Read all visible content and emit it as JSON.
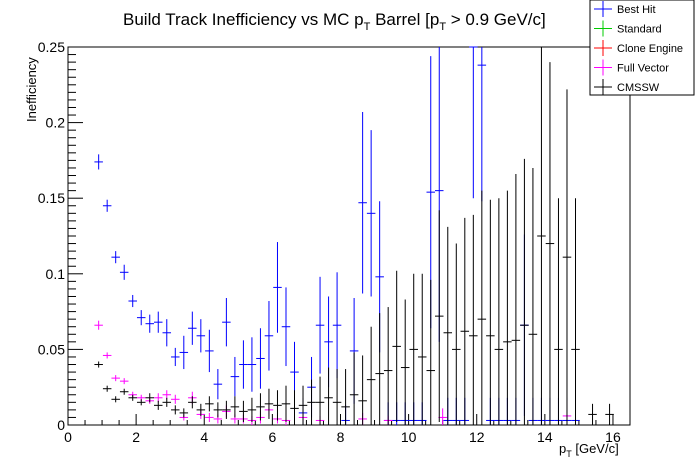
{
  "chart_data": {
    "type": "scatter",
    "title": {
      "main": "Build Track Inefficiency vs MC p",
      "sub": "T",
      "mid": " Barrel [p",
      "sub2": "T",
      "end": " > 0.9 GeV/c]"
    },
    "xlabel": {
      "main": "p",
      "sub": "T",
      "end": " [GeV/c]"
    },
    "ylabel": "Inefficiency",
    "xlim": [
      0,
      16.5
    ],
    "ylim": [
      0,
      0.25
    ],
    "x_ticks": [
      0,
      2,
      4,
      6,
      8,
      10,
      12,
      14,
      16
    ],
    "y_ticks": [
      0,
      0.05,
      0.1,
      0.15,
      0.2,
      0.25
    ],
    "x_tick_labels": [
      "0",
      "2",
      "4",
      "6",
      "8",
      "10",
      "12",
      "14",
      "16"
    ],
    "y_tick_labels": [
      "0",
      "0.05",
      "0.1",
      "0.15",
      "0.2",
      "0.25"
    ],
    "legend_position": "top-right",
    "bin_half_width": 0.125,
    "legend": [
      {
        "name": "Best Hit",
        "color": "#0000ff"
      },
      {
        "name": "Standard",
        "color": "#00cc00"
      },
      {
        "name": "Clone Engine",
        "color": "#ff0000"
      },
      {
        "name": "Full Vector",
        "color": "#ff00ff"
      },
      {
        "name": "CMSSW",
        "color": "#000000"
      }
    ],
    "series": [
      {
        "name": "Best Hit",
        "color": "#0000ff",
        "points": [
          {
            "x": 0.9,
            "y": 0.174,
            "e": 0.005
          },
          {
            "x": 1.15,
            "y": 0.145,
            "e": 0.004
          },
          {
            "x": 1.4,
            "y": 0.111,
            "e": 0.004
          },
          {
            "x": 1.65,
            "y": 0.101,
            "e": 0.005
          },
          {
            "x": 1.9,
            "y": 0.082,
            "e": 0.004
          },
          {
            "x": 2.15,
            "y": 0.071,
            "e": 0.005
          },
          {
            "x": 2.4,
            "y": 0.067,
            "e": 0.006
          },
          {
            "x": 2.65,
            "y": 0.068,
            "e": 0.007
          },
          {
            "x": 2.9,
            "y": 0.061,
            "e": 0.009
          },
          {
            "x": 3.15,
            "y": 0.045,
            "e": 0.006
          },
          {
            "x": 3.4,
            "y": 0.048,
            "e": 0.011
          },
          {
            "x": 3.65,
            "y": 0.064,
            "e": 0.011
          },
          {
            "x": 3.9,
            "y": 0.059,
            "e": 0.011
          },
          {
            "x": 4.15,
            "y": 0.049,
            "e": 0.014
          },
          {
            "x": 4.4,
            "y": 0.027,
            "e": 0.01
          },
          {
            "x": 4.65,
            "y": 0.068,
            "e": 0.016
          },
          {
            "x": 4.9,
            "y": 0.032,
            "e": 0.013
          },
          {
            "x": 5.15,
            "y": 0.04,
            "e": 0.016
          },
          {
            "x": 5.4,
            "y": 0.04,
            "e": 0.018
          },
          {
            "x": 5.65,
            "y": 0.044,
            "e": 0.02
          },
          {
            "x": 5.9,
            "y": 0.059,
            "e": 0.023
          },
          {
            "x": 6.15,
            "y": 0.091,
            "e": 0.03
          },
          {
            "x": 6.4,
            "y": 0.065,
            "e": 0.026
          },
          {
            "x": 6.65,
            "y": 0.035,
            "e": 0.02
          },
          {
            "x": 6.9,
            "y": 0.008,
            "e": 0.01
          },
          {
            "x": 7.15,
            "y": 0.025,
            "e": 0.02
          },
          {
            "x": 7.4,
            "y": 0.066,
            "e": 0.032
          },
          {
            "x": 7.65,
            "y": 0.055,
            "e": 0.03
          },
          {
            "x": 7.9,
            "y": 0.066,
            "e": 0.035
          },
          {
            "x": 8.15,
            "y": 0.003,
            "e": 0.01
          },
          {
            "x": 8.4,
            "y": 0.049,
            "e": 0.035
          },
          {
            "x": 8.65,
            "y": 0.147,
            "e": 0.06
          },
          {
            "x": 8.9,
            "y": 0.14,
            "e": 0.055
          },
          {
            "x": 9.15,
            "y": 0.098,
            "e": 0.05
          },
          {
            "x": 9.4,
            "y": 0.003,
            "e": 0.012
          },
          {
            "x": 9.65,
            "y": 0.003,
            "e": 0.012
          },
          {
            "x": 9.9,
            "y": 0.003,
            "e": 0.012
          },
          {
            "x": 10.15,
            "y": 0.003,
            "e": 0.012
          },
          {
            "x": 10.4,
            "y": 0.003,
            "e": 0.012
          },
          {
            "x": 10.65,
            "y": 0.154,
            "e": 0.09
          },
          {
            "x": 10.9,
            "y": 0.155,
            "e": 0.1
          },
          {
            "x": 11.15,
            "y": 0.003,
            "e": 0.015
          },
          {
            "x": 11.4,
            "y": 0.003,
            "e": 0.015
          },
          {
            "x": 11.65,
            "y": 0.003,
            "e": 0.015
          },
          {
            "x": 11.9,
            "y": 0.25,
            "e": 0.1
          },
          {
            "x": 12.15,
            "y": 0.238,
            "e": 0.09
          },
          {
            "x": 12.4,
            "y": 0.003,
            "e": 0.015
          },
          {
            "x": 12.65,
            "y": 0.003,
            "e": 0.015
          },
          {
            "x": 12.9,
            "y": 0.003,
            "e": 0.015
          },
          {
            "x": 13.15,
            "y": 0.003,
            "e": 0.015
          },
          {
            "x": 13.4,
            "y": 0.066,
            "e": 0.06
          },
          {
            "x": 13.65,
            "y": 0.003,
            "e": 0.015
          },
          {
            "x": 13.9,
            "y": 0.003,
            "e": 0.015
          },
          {
            "x": 14.15,
            "y": 0.003,
            "e": 0.015
          },
          {
            "x": 14.4,
            "y": 0.003,
            "e": 0.015
          },
          {
            "x": 14.65,
            "y": 0.003,
            "e": 0.015
          },
          {
            "x": 14.9,
            "y": 0.003,
            "e": 0.015
          }
        ]
      },
      {
        "name": "Full Vector",
        "color": "#ff00ff",
        "points": [
          {
            "x": 0.9,
            "y": 0.066,
            "e": 0.003
          },
          {
            "x": 1.15,
            "y": 0.046,
            "e": 0.002
          },
          {
            "x": 1.4,
            "y": 0.031,
            "e": 0.002
          },
          {
            "x": 1.65,
            "y": 0.029,
            "e": 0.002
          },
          {
            "x": 1.9,
            "y": 0.02,
            "e": 0.002
          },
          {
            "x": 2.15,
            "y": 0.018,
            "e": 0.002
          },
          {
            "x": 2.4,
            "y": 0.016,
            "e": 0.002
          },
          {
            "x": 2.65,
            "y": 0.018,
            "e": 0.003
          },
          {
            "x": 2.9,
            "y": 0.02,
            "e": 0.003
          },
          {
            "x": 3.15,
            "y": 0.017,
            "e": 0.003
          },
          {
            "x": 3.4,
            "y": 0.005,
            "e": 0.002
          },
          {
            "x": 3.65,
            "y": 0.018,
            "e": 0.004
          },
          {
            "x": 3.9,
            "y": 0.007,
            "e": 0.003
          },
          {
            "x": 4.15,
            "y": 0.005,
            "e": 0.003
          },
          {
            "x": 4.4,
            "y": 0.004,
            "e": 0.003
          },
          {
            "x": 4.65,
            "y": 0.009,
            "e": 0.004
          },
          {
            "x": 4.9,
            "y": 0.004,
            "e": 0.003
          },
          {
            "x": 5.15,
            "y": 0.004,
            "e": 0.003
          },
          {
            "x": 5.4,
            "y": 0.003,
            "e": 0.003
          },
          {
            "x": 5.65,
            "y": 0.005,
            "e": 0.004
          },
          {
            "x": 5.9,
            "y": 0.01,
            "e": 0.004
          },
          {
            "x": 6.15,
            "y": 0.004,
            "e": 0.003
          },
          {
            "x": 6.4,
            "y": 0.003,
            "e": 0.003
          },
          {
            "x": 6.9,
            "y": 0.005,
            "e": 0.003
          },
          {
            "x": 7.4,
            "y": 0.003,
            "e": 0.003
          },
          {
            "x": 8.65,
            "y": 0.004,
            "e": 0.004
          },
          {
            "x": 9.4,
            "y": 0.003,
            "e": 0.003
          },
          {
            "x": 11.0,
            "y": 0.005,
            "e": 0.006
          },
          {
            "x": 14.65,
            "y": 0.006,
            "e": 0.01
          }
        ]
      },
      {
        "name": "CMSSW",
        "color": "#000000",
        "points": [
          {
            "x": 0.9,
            "y": 0.04,
            "e": 0.002
          },
          {
            "x": 1.15,
            "y": 0.024,
            "e": 0.002
          },
          {
            "x": 1.4,
            "y": 0.017,
            "e": 0.002
          },
          {
            "x": 1.65,
            "y": 0.022,
            "e": 0.002
          },
          {
            "x": 1.9,
            "y": 0.018,
            "e": 0.002
          },
          {
            "x": 2.15,
            "y": 0.015,
            "e": 0.002
          },
          {
            "x": 2.4,
            "y": 0.018,
            "e": 0.003
          },
          {
            "x": 2.65,
            "y": 0.013,
            "e": 0.003
          },
          {
            "x": 2.9,
            "y": 0.015,
            "e": 0.003
          },
          {
            "x": 3.15,
            "y": 0.01,
            "e": 0.003
          },
          {
            "x": 3.4,
            "y": 0.008,
            "e": 0.003
          },
          {
            "x": 3.65,
            "y": 0.015,
            "e": 0.004
          },
          {
            "x": 3.9,
            "y": 0.01,
            "e": 0.004
          },
          {
            "x": 4.15,
            "y": 0.014,
            "e": 0.005
          },
          {
            "x": 4.4,
            "y": 0.01,
            "e": 0.005
          },
          {
            "x": 4.65,
            "y": 0.01,
            "e": 0.006
          },
          {
            "x": 4.9,
            "y": 0.012,
            "e": 0.007
          },
          {
            "x": 5.15,
            "y": 0.009,
            "e": 0.007
          },
          {
            "x": 5.4,
            "y": 0.01,
            "e": 0.008
          },
          {
            "x": 5.65,
            "y": 0.012,
            "e": 0.009
          },
          {
            "x": 5.9,
            "y": 0.014,
            "e": 0.01
          },
          {
            "x": 6.15,
            "y": 0.013,
            "e": 0.01
          },
          {
            "x": 6.4,
            "y": 0.014,
            "e": 0.012
          },
          {
            "x": 6.65,
            "y": 0.011,
            "e": 0.012
          },
          {
            "x": 6.9,
            "y": 0.013,
            "e": 0.013
          },
          {
            "x": 7.15,
            "y": 0.015,
            "e": 0.015
          },
          {
            "x": 7.4,
            "y": 0.015,
            "e": 0.017
          },
          {
            "x": 7.65,
            "y": 0.018,
            "e": 0.02
          },
          {
            "x": 7.9,
            "y": 0.015,
            "e": 0.022
          },
          {
            "x": 8.15,
            "y": 0.012,
            "e": 0.025
          },
          {
            "x": 8.4,
            "y": 0.02,
            "e": 0.028
          },
          {
            "x": 8.65,
            "y": 0.016,
            "e": 0.03
          },
          {
            "x": 8.9,
            "y": 0.03,
            "e": 0.035
          },
          {
            "x": 9.15,
            "y": 0.034,
            "e": 0.04
          },
          {
            "x": 9.4,
            "y": 0.036,
            "e": 0.042
          },
          {
            "x": 9.65,
            "y": 0.052,
            "e": 0.05
          },
          {
            "x": 9.9,
            "y": 0.038,
            "e": 0.045
          },
          {
            "x": 10.15,
            "y": 0.05,
            "e": 0.05
          },
          {
            "x": 10.4,
            "y": 0.045,
            "e": 0.055
          },
          {
            "x": 10.65,
            "y": 0.036,
            "e": 0.06
          },
          {
            "x": 10.9,
            "y": 0.072,
            "e": 0.07
          },
          {
            "x": 11.15,
            "y": 0.061,
            "e": 0.07
          },
          {
            "x": 11.4,
            "y": 0.05,
            "e": 0.07
          },
          {
            "x": 11.65,
            "y": 0.062,
            "e": 0.075
          },
          {
            "x": 11.9,
            "y": 0.059,
            "e": 0.08
          },
          {
            "x": 12.15,
            "y": 0.07,
            "e": 0.085
          },
          {
            "x": 12.4,
            "y": 0.059,
            "e": 0.09
          },
          {
            "x": 12.65,
            "y": 0.05,
            "e": 0.1
          },
          {
            "x": 12.9,
            "y": 0.055,
            "e": 0.1
          },
          {
            "x": 13.15,
            "y": 0.056,
            "e": 0.11
          },
          {
            "x": 13.4,
            "y": 0.066,
            "e": 0.11
          },
          {
            "x": 13.65,
            "y": 0.06,
            "e": 0.11
          },
          {
            "x": 13.9,
            "y": 0.125,
            "e": 0.125
          },
          {
            "x": 14.15,
            "y": 0.12,
            "e": 0.12
          },
          {
            "x": 14.4,
            "y": 0.05,
            "e": 0.1
          },
          {
            "x": 14.65,
            "y": 0.111,
            "e": 0.111
          },
          {
            "x": 14.9,
            "y": 0.05,
            "e": 0.1
          },
          {
            "x": 15.4,
            "y": 0.007,
            "e": 0.007
          },
          {
            "x": 15.9,
            "y": 0.007,
            "e": 0.007
          }
        ]
      }
    ]
  }
}
